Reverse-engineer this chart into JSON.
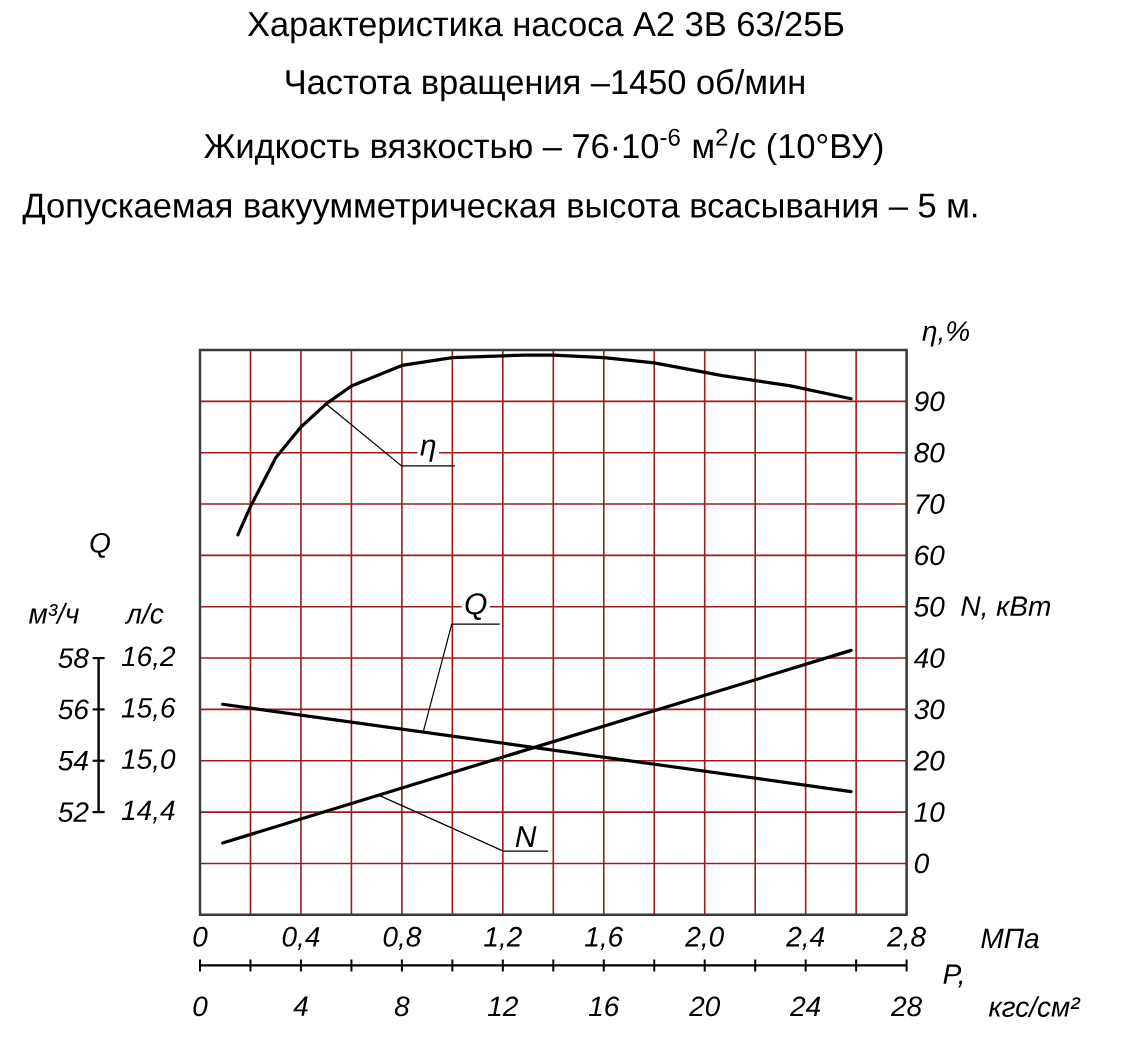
{
  "chart_data": {
    "type": "line",
    "title": "Характеристика насоса А2 3В 63/25Б",
    "subtitle": "Частота вращения –1450 об/мин",
    "annotations": [
      "Жидкость вязкостью – 76·10$^{-6}$ м$^{2}$/с (10°ВУ)",
      "Допускаемая вакуумметрическая высота всасывания – 5 м.",
      "м³/ч",
      "N, кВт",
      "P,"
    ],
    "xlabel": "МПа",
    "x2label": "кгс/см²",
    "ylabel": "Q",
    "y2label": "η,%",
    "y3label": "л/с",
    "xlim": [
      0,
      2.8
    ],
    "xticks": [
      0,
      {
        "value": 0.2,
        "label": null
      },
      {
        "value": 0.4,
        "label": "0,4"
      },
      {
        "value": 0.6,
        "label": null
      },
      {
        "value": 0.8,
        "label": "0,8"
      },
      {
        "value": 1.0,
        "label": null
      },
      {
        "value": 1.2,
        "label": "1,2"
      },
      {
        "value": 1.4,
        "label": null
      },
      {
        "value": 1.6,
        "label": "1,6"
      },
      {
        "value": 1.8,
        "label": null
      },
      {
        "value": 2.0,
        "label": "2,0"
      },
      {
        "value": 2.2,
        "label": null
      },
      {
        "value": 2.4,
        "label": "2,4"
      },
      {
        "value": 2.6,
        "label": null
      },
      {
        "value": 2.8,
        "label": "2,8"
      }
    ],
    "x2lim": [
      0,
      28
    ],
    "x2ticks": [
      0,
      {
        "value": 2,
        "label": null
      },
      4,
      {
        "value": 6,
        "label": null
      },
      8,
      {
        "value": 10,
        "label": null
      },
      12,
      {
        "value": 14,
        "label": null
      },
      16,
      {
        "value": 18,
        "label": null
      },
      20,
      {
        "value": 22,
        "label": null
      },
      24,
      {
        "value": 26,
        "label": null
      },
      28
    ],
    "ylim": [
      48,
      70
    ],
    "yticks": [
      52,
      54,
      56,
      58
    ],
    "y2lim": [
      -10,
      100
    ],
    "y2ticks": [
      0,
      10,
      20,
      30,
      40,
      50,
      60,
      70,
      80,
      90
    ],
    "y3lim": [
      13.2,
      19.8
    ],
    "y3ticks": [
      {
        "value": 14.4,
        "label": "14,4"
      },
      {
        "value": 15.0,
        "label": "15,0"
      },
      {
        "value": 15.6,
        "label": "15,6"
      },
      {
        "value": 16.2,
        "label": "16,2"
      }
    ],
    "grid": true,
    "series": [
      {
        "name": "η",
        "color": "#000000",
        "axis": "y2",
        "x": [
          0.15,
          0.2,
          0.3,
          0.4,
          0.5,
          0.6,
          0.8,
          1.0,
          1.28,
          1.4,
          1.6,
          1.8,
          2.07,
          2.34,
          2.58
        ],
        "values": [
          64,
          69.5,
          79,
          85,
          89.5,
          93,
          97,
          98.5,
          99,
          99,
          98.5,
          97.5,
          95,
          93,
          90.5
        ]
      },
      {
        "name": "Q",
        "color": "#000000",
        "x": [
          0.09,
          2.58
        ],
        "values": [
          56.2,
          52.8
        ]
      },
      {
        "name": "N",
        "color": "#000000",
        "axis": "y2",
        "x": [
          0.09,
          2.58
        ],
        "values": [
          4,
          41.5
        ]
      }
    ]
  }
}
